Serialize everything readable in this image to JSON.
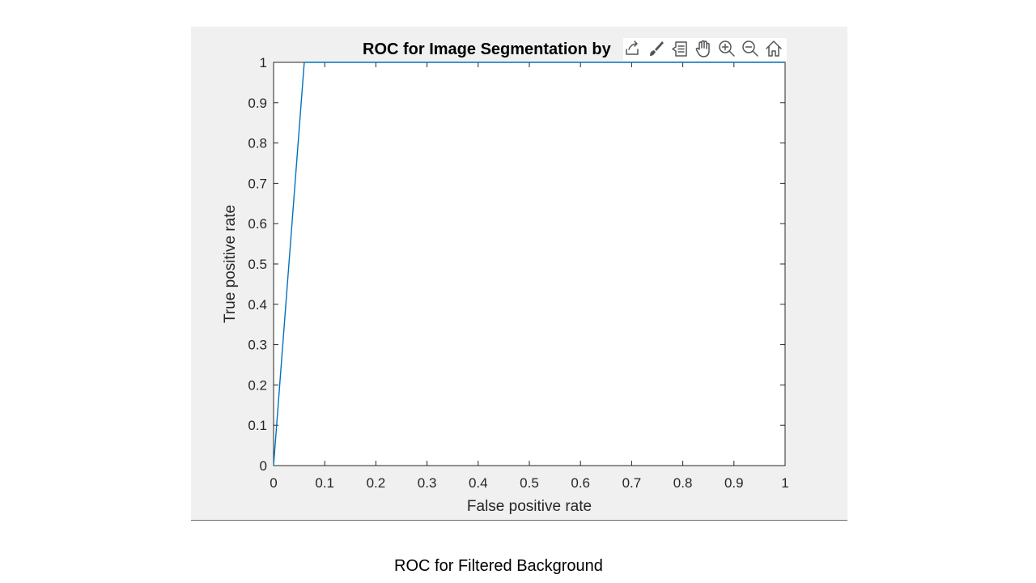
{
  "chart_data": {
    "type": "line",
    "title": "ROC for Image Segmentation by",
    "xlabel": "False positive rate",
    "ylabel": "True positive rate",
    "xlim": [
      0,
      1
    ],
    "ylim": [
      0,
      1
    ],
    "xticks": [
      "0",
      "0.1",
      "0.2",
      "0.3",
      "0.4",
      "0.5",
      "0.6",
      "0.7",
      "0.8",
      "0.9",
      "1"
    ],
    "yticks": [
      "0",
      "0.1",
      "0.2",
      "0.3",
      "0.4",
      "0.5",
      "0.6",
      "0.7",
      "0.8",
      "0.9",
      "1"
    ],
    "grid": false,
    "series": [
      {
        "color": "#0072bd",
        "x": [
          0,
          0.06,
          0.1,
          1
        ],
        "y": [
          0,
          1,
          1,
          1
        ]
      }
    ]
  },
  "toolbar": {
    "icons": [
      "export-icon",
      "brush-icon",
      "data-tips-icon",
      "pan-icon",
      "zoom-in-icon",
      "zoom-out-icon",
      "home-icon"
    ]
  },
  "caption": "ROC for Filtered Background"
}
